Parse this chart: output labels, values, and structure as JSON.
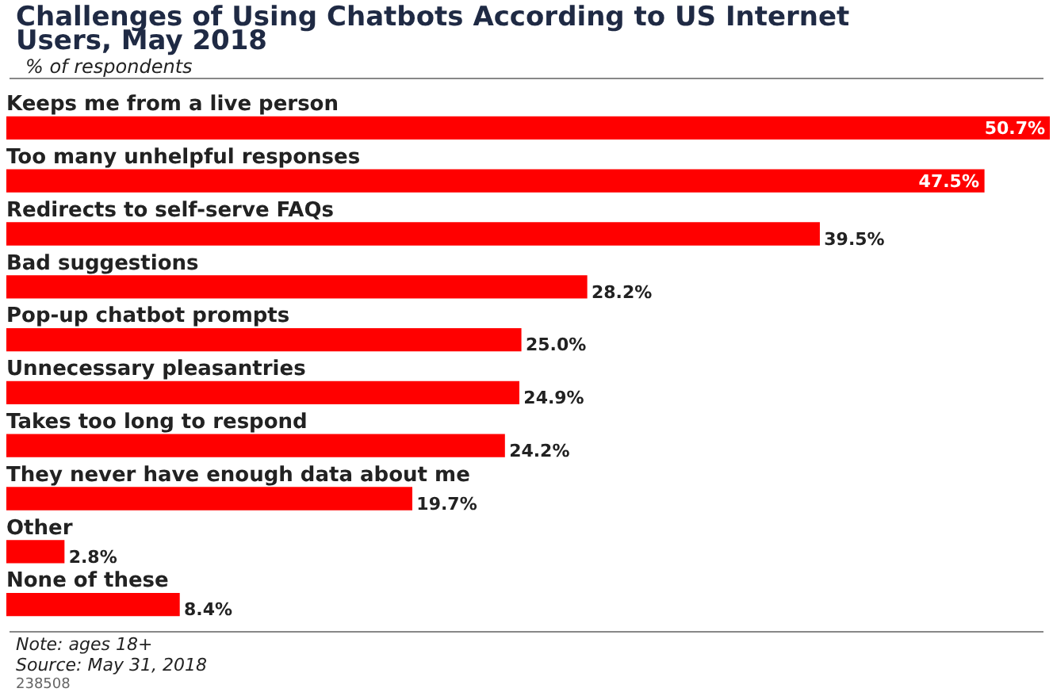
{
  "chart_data": {
    "type": "bar",
    "orientation": "horizontal",
    "title": "Challenges of Using Chatbots According to US Internet Users, May 2018",
    "subtitle": "% of respondents",
    "categories": [
      "Keeps me from a live person",
      "Too many unhelpful responses",
      "Redirects to self-serve FAQs",
      "Bad suggestions",
      "Pop-up chatbot prompts",
      "Unnecessary pleasantries",
      "Takes too long to respond",
      "They never have enough data about me",
      "Other",
      "None of these"
    ],
    "values": [
      50.7,
      47.5,
      39.5,
      28.2,
      25.0,
      24.9,
      24.2,
      19.7,
      2.8,
      8.4
    ],
    "value_labels": [
      "50.7%",
      "47.5%",
      "39.5%",
      "28.2%",
      "25.0%",
      "24.9%",
      "24.2%",
      "19.7%",
      "2.8%",
      "8.4%"
    ],
    "color": "#ff0000",
    "legend": false,
    "annotations": [
      "Note: ages 18+",
      "Source: May 31, 2018",
      "238508"
    ]
  }
}
